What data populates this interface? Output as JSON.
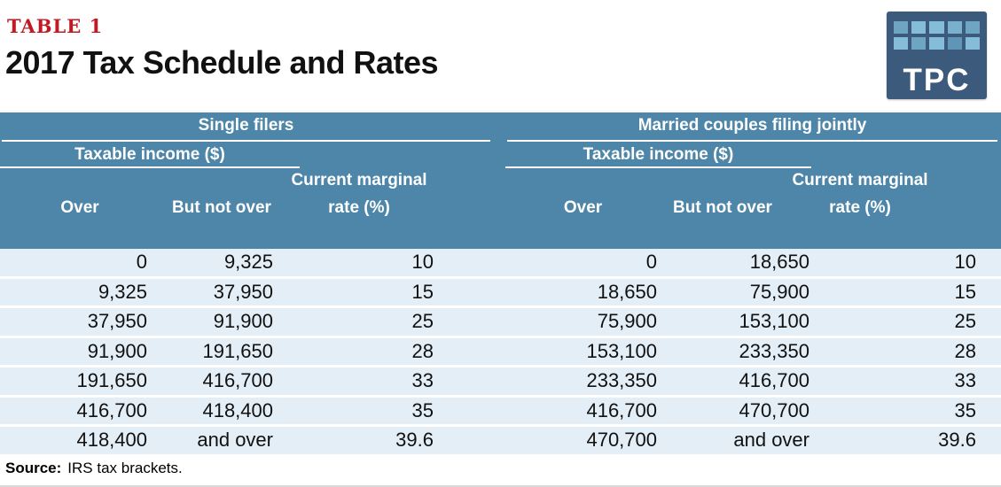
{
  "header": {
    "table_label": "TABLE 1",
    "title": "2017 Tax Schedule and Rates"
  },
  "logo": {
    "text": "TPC",
    "bg_color": "#3c5a7c",
    "square_colors": [
      "#6da5c3",
      "#85bdd8",
      "#85bdd8",
      "#79b0cc",
      "#6da5c3",
      "#85bdd8",
      "#6da5c3",
      "#85bdd8",
      "#5f96b8",
      "#85bdd8"
    ]
  },
  "colors": {
    "header_bg": "#4e86a9",
    "row_bg": "#e3eef7",
    "label_red": "#c01a23"
  },
  "table": {
    "groups": [
      {
        "title": "Single filers",
        "income_header": "Taxable income ($)",
        "col_over": "Over",
        "col_but_not_over": "But not over",
        "col_rate_line1": "Current marginal",
        "col_rate_line2": "rate (%)"
      },
      {
        "title": "Married couples filing jointly",
        "income_header": "Taxable income ($)",
        "col_over": "Over",
        "col_but_not_over": "But not over",
        "col_rate_line1": "Current marginal",
        "col_rate_line2": "rate (%)"
      }
    ],
    "rows": [
      [
        "0",
        "9,325",
        "10",
        "0",
        "18,650",
        "10"
      ],
      [
        "9,325",
        "37,950",
        "15",
        "18,650",
        "75,900",
        "15"
      ],
      [
        "37,950",
        "91,900",
        "25",
        "75,900",
        "153,100",
        "25"
      ],
      [
        "91,900",
        "191,650",
        "28",
        "153,100",
        "233,350",
        "28"
      ],
      [
        "191,650",
        "416,700",
        "33",
        "233,350",
        "416,700",
        "33"
      ],
      [
        "416,700",
        "418,400",
        "35",
        "416,700",
        "470,700",
        "35"
      ],
      [
        "418,400",
        "and over",
        "39.6",
        "470,700",
        "and over",
        "39.6"
      ]
    ]
  },
  "footer": {
    "source_label": "Source:",
    "source_text": "IRS tax brackets."
  }
}
